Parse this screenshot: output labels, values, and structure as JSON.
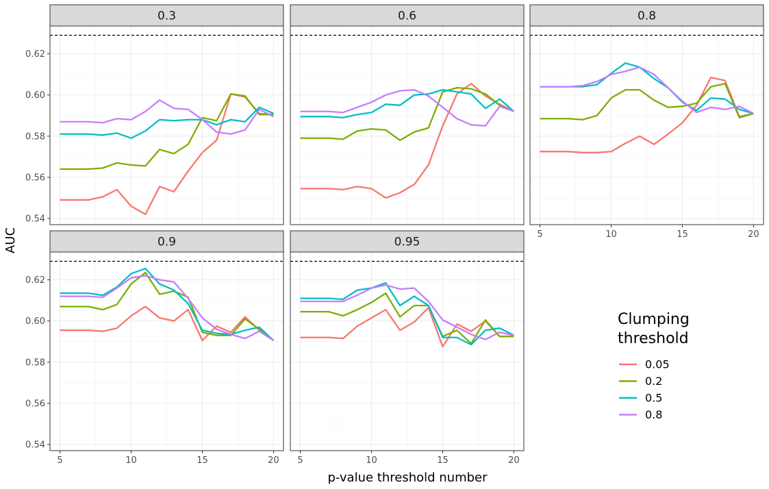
{
  "chart_data": {
    "type": "line",
    "xlabel": "p-value threshold number",
    "ylabel": "AUC",
    "xlim": [
      4.3,
      20.7
    ],
    "ylim": [
      0.537,
      0.6335
    ],
    "x_ticks": [
      5,
      10,
      15,
      20
    ],
    "y_ticks": [
      0.54,
      0.56,
      0.58,
      0.6,
      0.62
    ],
    "y_tick_labels": [
      "0.54",
      "0.56",
      "0.58",
      "0.60",
      "0.62"
    ],
    "reference_line": 0.629,
    "grid": true,
    "legend": {
      "title": "Clumping threshold",
      "title_lines": [
        "Clumping",
        "threshold"
      ],
      "position": "right",
      "entries": [
        "0.05",
        "0.2",
        "0.5",
        "0.8"
      ]
    },
    "series_colors": {
      "0.05": "#F8766D",
      "0.2": "#7CAE00",
      "0.5": "#00BFC4",
      "0.8": "#C77CFF"
    },
    "x": [
      5,
      6,
      7,
      8,
      9,
      10,
      11,
      12,
      13,
      14,
      15,
      16,
      17,
      18,
      19,
      20
    ],
    "panels": [
      {
        "label": "0.3",
        "series": [
          {
            "name": "0.05",
            "values": [
              0.549,
              0.549,
              0.549,
              0.5505,
              0.554,
              0.546,
              0.542,
              0.5555,
              0.553,
              0.563,
              0.572,
              0.578,
              0.6005,
              0.599,
              0.591,
              0.5905
            ]
          },
          {
            "name": "0.2",
            "values": [
              0.564,
              0.564,
              0.564,
              0.5645,
              0.567,
              0.566,
              0.5655,
              0.5735,
              0.5715,
              0.576,
              0.589,
              0.5875,
              0.6005,
              0.5995,
              0.5905,
              0.5905
            ]
          },
          {
            "name": "0.5",
            "values": [
              0.581,
              0.581,
              0.581,
              0.5805,
              0.5815,
              0.579,
              0.5825,
              0.588,
              0.5875,
              0.588,
              0.588,
              0.5855,
              0.588,
              0.587,
              0.594,
              0.591
            ]
          },
          {
            "name": "0.8",
            "values": [
              0.587,
              0.587,
              0.587,
              0.5865,
              0.5885,
              0.588,
              0.592,
              0.5975,
              0.5935,
              0.593,
              0.588,
              0.582,
              0.581,
              0.583,
              0.593,
              0.5895
            ]
          }
        ]
      },
      {
        "label": "0.6",
        "series": [
          {
            "name": "0.05",
            "values": [
              0.5545,
              0.5545,
              0.5545,
              0.554,
              0.5555,
              0.5545,
              0.55,
              0.5525,
              0.5565,
              0.566,
              0.585,
              0.6005,
              0.6055,
              0.5995,
              0.5955,
              0.592
            ]
          },
          {
            "name": "0.2",
            "values": [
              0.579,
              0.579,
              0.579,
              0.5785,
              0.5825,
              0.5835,
              0.583,
              0.578,
              0.582,
              0.584,
              0.6015,
              0.6035,
              0.603,
              0.6005,
              0.595,
              0.592
            ]
          },
          {
            "name": "0.5",
            "values": [
              0.5895,
              0.5895,
              0.5895,
              0.589,
              0.5905,
              0.5915,
              0.5955,
              0.595,
              0.6,
              0.6005,
              0.6025,
              0.6015,
              0.6005,
              0.5935,
              0.598,
              0.592
            ]
          },
          {
            "name": "0.8",
            "values": [
              0.592,
              0.592,
              0.592,
              0.5915,
              0.594,
              0.5965,
              0.6,
              0.602,
              0.6025,
              0.5995,
              0.594,
              0.5885,
              0.5855,
              0.585,
              0.5945,
              0.592
            ]
          }
        ]
      },
      {
        "label": "0.8",
        "series": [
          {
            "name": "0.05",
            "values": [
              0.5725,
              0.5725,
              0.5725,
              0.572,
              0.572,
              0.5725,
              0.5765,
              0.58,
              0.576,
              0.581,
              0.5865,
              0.595,
              0.6085,
              0.607,
              0.5895,
              0.591
            ]
          },
          {
            "name": "0.2",
            "values": [
              0.5885,
              0.5885,
              0.5885,
              0.588,
              0.59,
              0.5985,
              0.6025,
              0.6025,
              0.5975,
              0.594,
              0.5945,
              0.596,
              0.604,
              0.6055,
              0.589,
              0.591
            ]
          },
          {
            "name": "0.5",
            "values": [
              0.604,
              0.604,
              0.604,
              0.604,
              0.605,
              0.6105,
              0.6155,
              0.6135,
              0.608,
              0.6035,
              0.5965,
              0.5925,
              0.5985,
              0.598,
              0.593,
              0.591
            ]
          },
          {
            "name": "0.8",
            "values": [
              0.604,
              0.604,
              0.604,
              0.6045,
              0.6065,
              0.61,
              0.6115,
              0.6135,
              0.61,
              0.6035,
              0.597,
              0.5915,
              0.594,
              0.593,
              0.5945,
              0.591
            ]
          }
        ]
      },
      {
        "label": "0.9",
        "series": [
          {
            "name": "0.05",
            "values": [
              0.5955,
              0.5955,
              0.5955,
              0.595,
              0.5965,
              0.6025,
              0.607,
              0.6015,
              0.6,
              0.6055,
              0.5905,
              0.5975,
              0.5945,
              0.602,
              0.5955,
              0.5905
            ]
          },
          {
            "name": "0.2",
            "values": [
              0.607,
              0.607,
              0.607,
              0.6055,
              0.608,
              0.618,
              0.6235,
              0.613,
              0.6145,
              0.6115,
              0.5945,
              0.593,
              0.593,
              0.601,
              0.596,
              0.5905
            ]
          },
          {
            "name": "0.5",
            "values": [
              0.6135,
              0.6135,
              0.6135,
              0.6125,
              0.6165,
              0.623,
              0.6255,
              0.618,
              0.615,
              0.6085,
              0.5955,
              0.594,
              0.5935,
              0.5955,
              0.597,
              0.5905
            ]
          },
          {
            "name": "0.8",
            "values": [
              0.612,
              0.612,
              0.612,
              0.6115,
              0.616,
              0.621,
              0.622,
              0.62,
              0.619,
              0.611,
              0.6015,
              0.596,
              0.5935,
              0.5915,
              0.595,
              0.5905
            ]
          }
        ]
      },
      {
        "label": "0.95",
        "series": [
          {
            "name": "0.05",
            "values": [
              0.592,
              0.592,
              0.592,
              0.5915,
              0.5975,
              0.6015,
              0.6055,
              0.5955,
              0.5995,
              0.6065,
              0.5875,
              0.5985,
              0.595,
              0.6,
              0.5925,
              0.5925
            ]
          },
          {
            "name": "0.2",
            "values": [
              0.6045,
              0.6045,
              0.6045,
              0.6025,
              0.6055,
              0.609,
              0.6135,
              0.602,
              0.6075,
              0.6075,
              0.5925,
              0.5955,
              0.589,
              0.6005,
              0.5925,
              0.5925
            ]
          },
          {
            "name": "0.5",
            "values": [
              0.611,
              0.611,
              0.611,
              0.6105,
              0.615,
              0.616,
              0.6185,
              0.6075,
              0.612,
              0.6075,
              0.592,
              0.592,
              0.5885,
              0.5955,
              0.5965,
              0.593
            ]
          },
          {
            "name": "0.8",
            "values": [
              0.6095,
              0.6095,
              0.6095,
              0.6095,
              0.6125,
              0.616,
              0.6175,
              0.6155,
              0.616,
              0.6095,
              0.6005,
              0.597,
              0.5935,
              0.591,
              0.5945,
              0.593
            ]
          }
        ]
      }
    ]
  }
}
